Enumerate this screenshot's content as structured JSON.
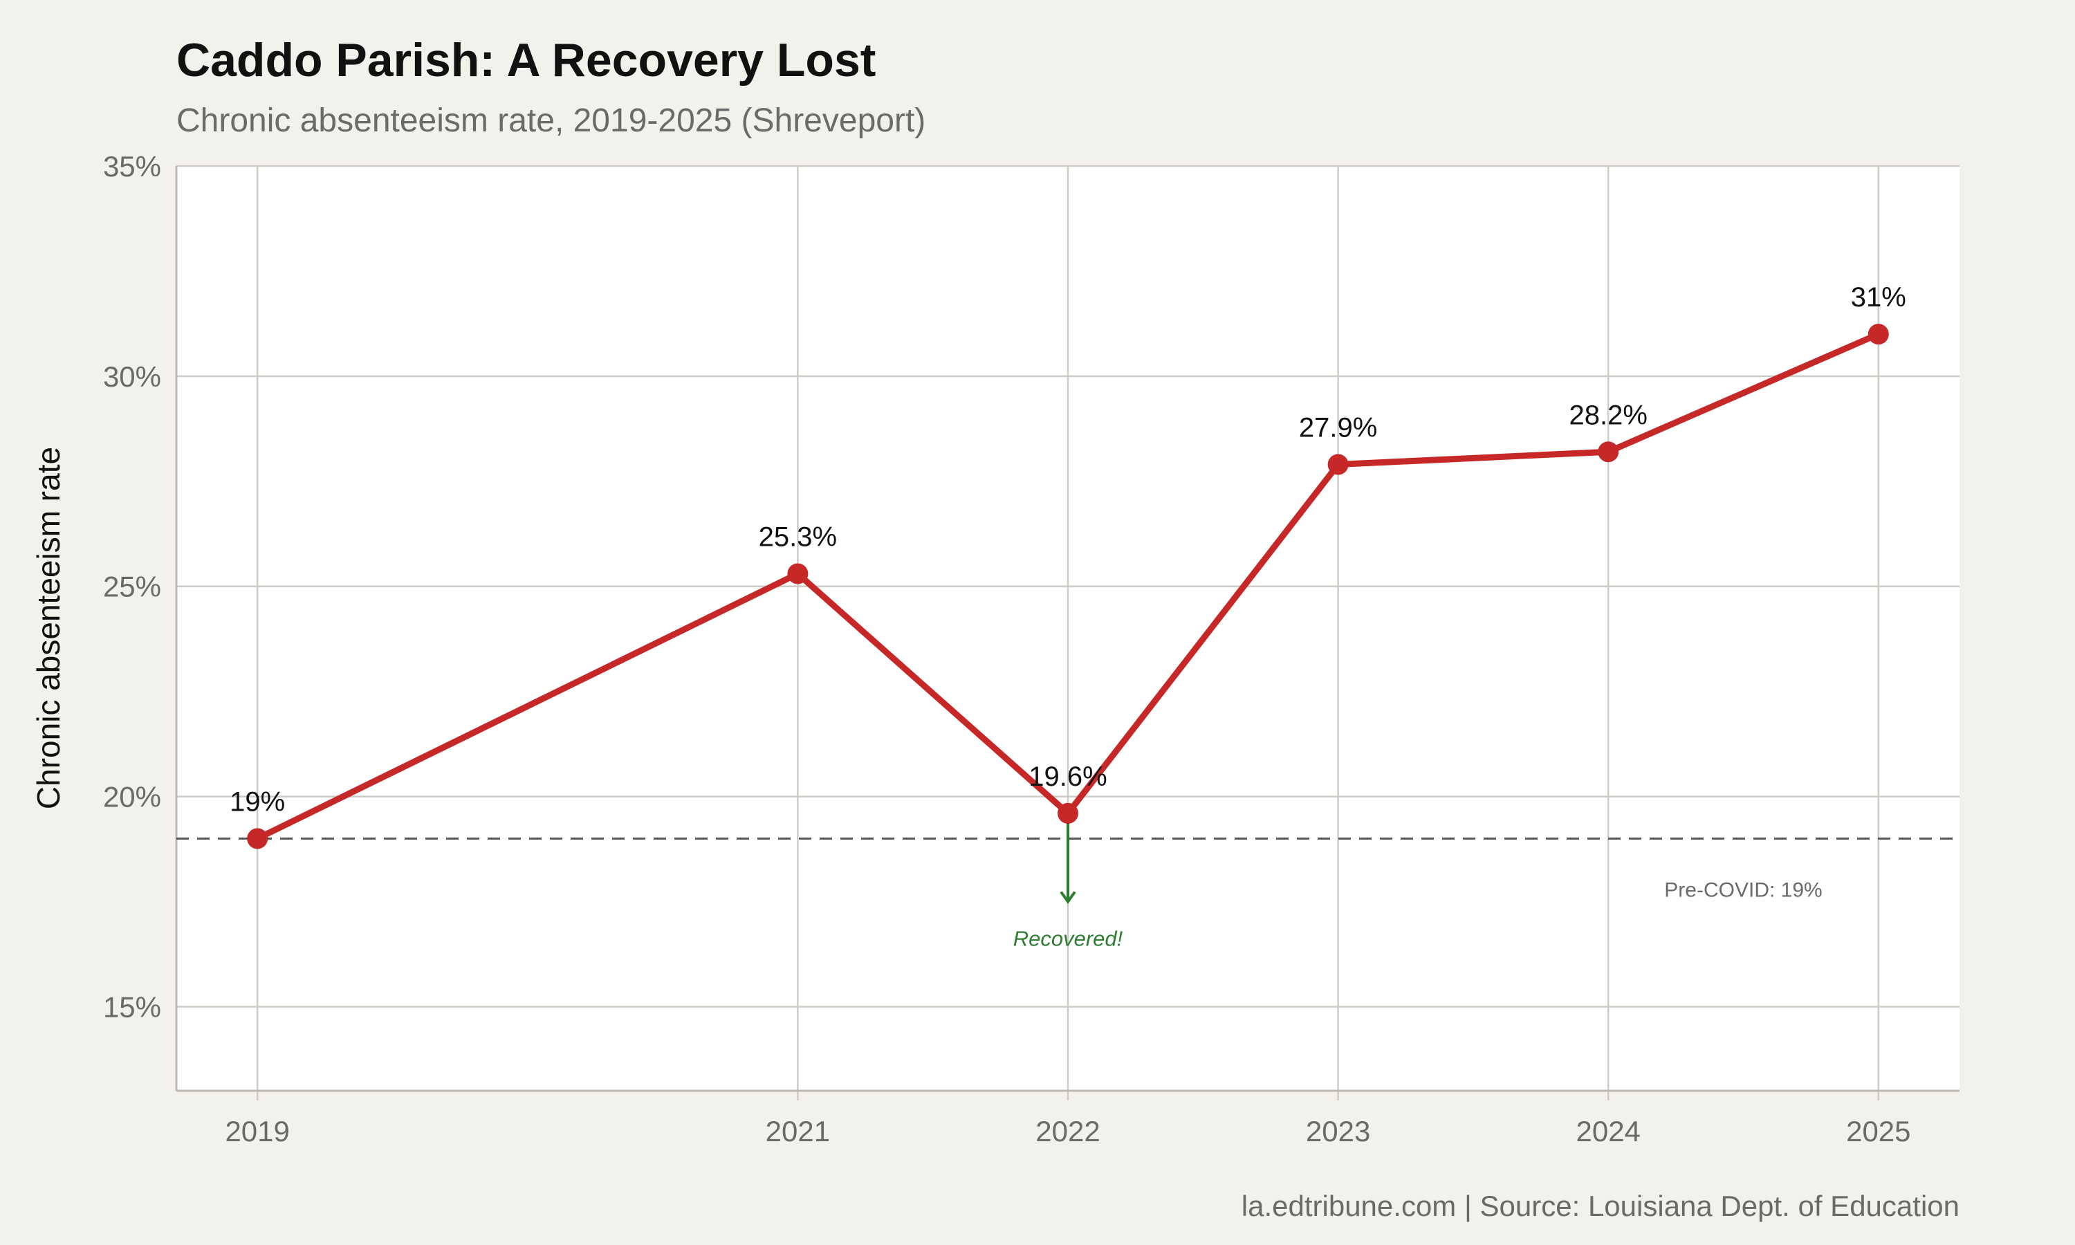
{
  "colors": {
    "background": "#f3f1ec",
    "panel": "#ffffff",
    "grid": "#cfccc5",
    "line": "#c62828",
    "reference": "#555555",
    "annotation_arrow": "#2e7d32"
  },
  "chart_data": {
    "type": "line",
    "title": "Caddo Parish: A Recovery Lost",
    "subtitle": "Chronic absenteeism rate, 2019-2025 (Shreveport)",
    "xlabel": "",
    "ylabel": "Chronic absenteeism rate",
    "x": [
      2019,
      2021,
      2022,
      2023,
      2024,
      2025
    ],
    "x_tick_labels": [
      "2019",
      "2021",
      "2022",
      "2023",
      "2024",
      "2025"
    ],
    "xlim": [
      2018.7,
      2025.3
    ],
    "values": [
      19.0,
      25.3,
      19.6,
      27.9,
      28.2,
      31.0
    ],
    "data_labels": [
      "19%",
      "25.3%",
      "19.6%",
      "27.9%",
      "28.2%",
      "31%"
    ],
    "ylim": [
      13,
      35
    ],
    "y_ticks": [
      15,
      20,
      25,
      30,
      35
    ],
    "y_tick_labels": [
      "15%",
      "20%",
      "25%",
      "30%",
      "35%"
    ],
    "grid": true,
    "legend": "none",
    "reference_line": {
      "y": 19,
      "style": "dashed",
      "label": "Pre-COVID: 19%"
    },
    "annotation": {
      "x": 2022,
      "from_y": 19.6,
      "to_y": 17.5,
      "text": "Recovered!"
    },
    "caption": "la.edtribune.com | Source: Louisiana Dept. of Education"
  }
}
